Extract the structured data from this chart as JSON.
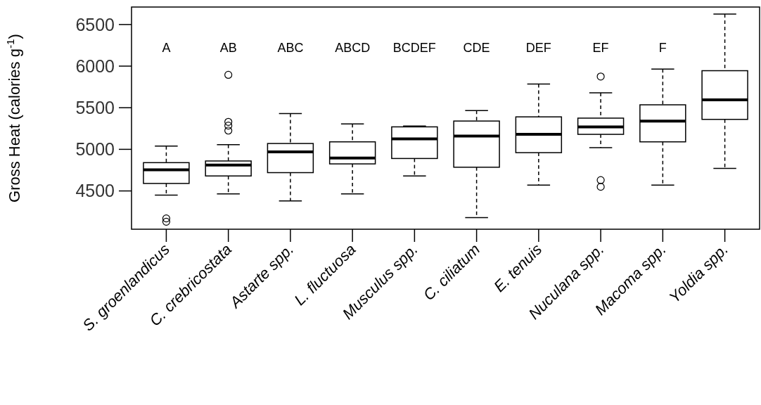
{
  "chart_data": {
    "type": "box",
    "ylabel": "Gross Heat (calories g$^{-1}$)",
    "categories": [
      "S. groenlandicus",
      "C. crebricostata",
      "Astarte spp.",
      "L. fluctuosa",
      "Musculus spp.",
      "C. ciliatum",
      "E. tenuis",
      "Nuculana spp.",
      "Macoma spp.",
      "Yoldia spp."
    ],
    "boxes": [
      {
        "low": 4450,
        "q1": 4590,
        "median": 4755,
        "q3": 4840,
        "high": 5040,
        "outliers": [
          4170,
          4130
        ]
      },
      {
        "low": 4465,
        "q1": 4680,
        "median": 4810,
        "q3": 4860,
        "high": 5055,
        "outliers": [
          5895,
          5330,
          5285,
          5225
        ]
      },
      {
        "low": 4380,
        "q1": 4720,
        "median": 4970,
        "q3": 5070,
        "high": 5430
      },
      {
        "low": 4465,
        "q1": 4825,
        "median": 4895,
        "q3": 5090,
        "high": 5305
      },
      {
        "low": 4680,
        "q1": 4890,
        "median": 5125,
        "q3": 5270,
        "high": 5280
      },
      {
        "low": 4180,
        "q1": 4785,
        "median": 5160,
        "q3": 5340,
        "high": 5465
      },
      {
        "low": 4570,
        "q1": 4960,
        "median": 5180,
        "q3": 5390,
        "high": 5785
      },
      {
        "low": 5020,
        "q1": 5180,
        "median": 5270,
        "q3": 5375,
        "high": 5680,
        "outliers": [
          5875,
          4630,
          4550
        ]
      },
      {
        "low": 4570,
        "q1": 5090,
        "median": 5340,
        "q3": 5535,
        "high": 5965
      },
      {
        "low": 4770,
        "q1": 5360,
        "median": 5595,
        "q3": 5945,
        "high": 6625
      }
    ],
    "ylim": [
      4040,
      6710
    ],
    "yticks": [
      4500,
      5000,
      5500,
      6000,
      6500
    ],
    "grid": false,
    "annotations": [
      "A",
      "AB",
      "ABC",
      "ABCD",
      "BCDEF",
      "CDE",
      "DEF",
      "EF",
      "F"
    ]
  }
}
